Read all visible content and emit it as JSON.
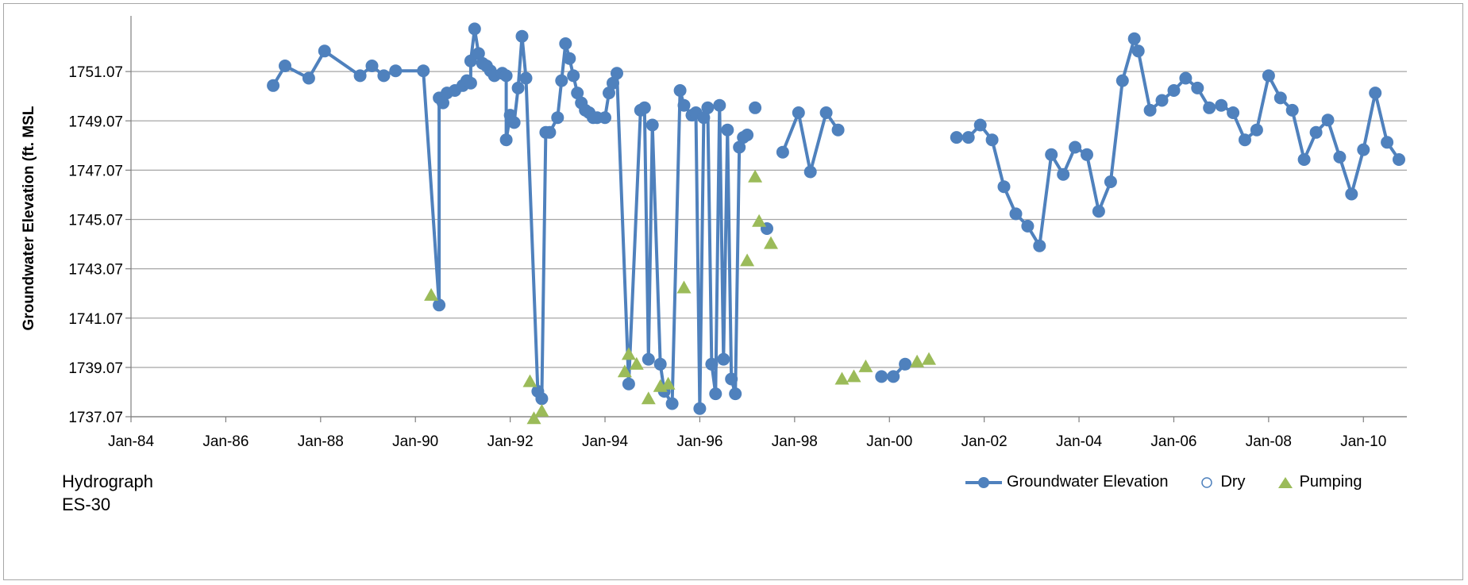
{
  "caption": {
    "line1": "Hydrograph",
    "line2": "ES-30"
  },
  "chart_data": {
    "type": "line",
    "ylabel": "Groundwater Elevation (ft. MSL",
    "xlabel": "",
    "ylim": [
      1737.07,
      1753.07
    ],
    "y_ticks": [
      1737.07,
      1739.07,
      1741.07,
      1743.07,
      1745.07,
      1747.07,
      1749.07,
      1751.07
    ],
    "y_tick_labels": [
      "1737.07",
      "1739.07",
      "1741.07",
      "1743.07",
      "1745.07",
      "1747.07",
      "1749.07",
      "1751.07"
    ],
    "xlim": [
      "1984-01",
      "2010-12"
    ],
    "x_ticks": [
      "1984-01",
      "1986-01",
      "1988-01",
      "1990-01",
      "1992-01",
      "1994-01",
      "1996-01",
      "1998-01",
      "2000-01",
      "2002-01",
      "2004-01",
      "2006-01",
      "2008-01",
      "2010-01"
    ],
    "x_tick_labels": [
      "Jan-84",
      "Jan-86",
      "Jan-88",
      "Jan-90",
      "Jan-92",
      "Jan-94",
      "Jan-96",
      "Jan-98",
      "Jan-00",
      "Jan-02",
      "Jan-04",
      "Jan-06",
      "Jan-08",
      "Jan-10"
    ],
    "grid": "horizontal",
    "legend_position": "bottom-right",
    "colors": {
      "elevation": "#4f81bd",
      "pumping": "#9bbb59",
      "dry": "#4f81bd",
      "axis": "#7f7f7f",
      "grid": "#a6a6a6"
    },
    "legend": [
      {
        "label": "Groundwater Elevation",
        "symbol": "line-circle"
      },
      {
        "label": "Dry",
        "symbol": "open-circle"
      },
      {
        "label": "Pumping",
        "symbol": "triangle"
      }
    ],
    "series": [
      {
        "name": "Groundwater Elevation",
        "segments": [
          [
            [
              "1987-01",
              1750.5
            ],
            [
              "1987-04",
              1751.3
            ],
            [
              "1987-10",
              1750.8
            ],
            [
              "1988-02",
              1751.9
            ],
            [
              "1988-11",
              1750.9
            ],
            [
              "1989-02",
              1751.3
            ],
            [
              "1989-05",
              1750.9
            ],
            [
              "1989-08",
              1751.1
            ],
            [
              "1990-03",
              1751.1
            ],
            [
              "1990-07",
              1741.6
            ],
            [
              "1990-07",
              1750.0
            ],
            [
              "1990-08",
              1749.8
            ],
            [
              "1990-09",
              1750.2
            ],
            [
              "1990-11",
              1750.3
            ],
            [
              "1991-01",
              1750.5
            ],
            [
              "1991-02",
              1750.7
            ],
            [
              "1991-03",
              1750.6
            ],
            [
              "1991-03",
              1751.5
            ],
            [
              "1991-04",
              1752.8
            ],
            [
              "1991-05",
              1751.8
            ],
            [
              "1991-06",
              1751.4
            ],
            [
              "1991-07",
              1751.3
            ],
            [
              "1991-08",
              1751.1
            ],
            [
              "1991-09",
              1750.9
            ],
            [
              "1991-11",
              1751.0
            ],
            [
              "1991-12",
              1750.9
            ],
            [
              "1991-12",
              1748.3
            ],
            [
              "1992-01",
              1749.3
            ],
            [
              "1992-02",
              1749.0
            ],
            [
              "1992-03",
              1750.4
            ],
            [
              "1992-04",
              1752.5
            ],
            [
              "1992-05",
              1750.8
            ],
            [
              "1992-08",
              1738.1
            ],
            [
              "1992-09",
              1737.8
            ],
            [
              "1992-10",
              1748.6
            ],
            [
              "1992-11",
              1748.6
            ],
            [
              "1993-01",
              1749.2
            ],
            [
              "1993-02",
              1750.7
            ],
            [
              "1993-03",
              1752.2
            ],
            [
              "1993-04",
              1751.6
            ],
            [
              "1993-05",
              1750.9
            ],
            [
              "1993-06",
              1750.2
            ],
            [
              "1993-07",
              1749.8
            ],
            [
              "1993-08",
              1749.5
            ],
            [
              "1993-09",
              1749.4
            ],
            [
              "1993-10",
              1749.2
            ],
            [
              "1993-11",
              1749.2
            ],
            [
              "1994-01",
              1749.2
            ],
            [
              "1994-02",
              1750.2
            ],
            [
              "1994-03",
              1750.6
            ],
            [
              "1994-04",
              1751.0
            ],
            [
              "1994-07",
              1738.4
            ],
            [
              "1994-10",
              1749.5
            ],
            [
              "1994-11",
              1749.6
            ],
            [
              "1994-12",
              1739.4
            ],
            [
              "1995-01",
              1748.9
            ],
            [
              "1995-03",
              1739.2
            ],
            [
              "1995-04",
              1738.1
            ],
            [
              "1995-06",
              1737.6
            ],
            [
              "1995-08",
              1750.3
            ],
            [
              "1995-09",
              1749.7
            ],
            [
              "1995-11",
              1749.3
            ],
            [
              "1995-12",
              1749.4
            ],
            [
              "1996-01",
              1737.4
            ],
            [
              "1996-02",
              1749.2
            ],
            [
              "1996-03",
              1749.6
            ],
            [
              "1996-04",
              1739.2
            ],
            [
              "1996-05",
              1738.0
            ],
            [
              "1996-06",
              1749.7
            ],
            [
              "1996-07",
              1739.4
            ],
            [
              "1996-08",
              1748.7
            ],
            [
              "1996-09",
              1738.6
            ],
            [
              "1996-10",
              1738.0
            ],
            [
              "1996-11",
              1748.0
            ],
            [
              "1996-12",
              1748.4
            ],
            [
              "1997-01",
              1748.5
            ]
          ],
          [
            [
              "1997-03",
              1749.6
            ]
          ],
          [
            [
              "1997-06",
              1744.7
            ]
          ],
          [
            [
              "1997-10",
              1747.8
            ],
            [
              "1998-02",
              1749.4
            ],
            [
              "1998-05",
              1747.0
            ],
            [
              "1998-09",
              1749.4
            ],
            [
              "1998-12",
              1748.7
            ]
          ],
          [
            [
              "1999-11",
              1738.7
            ],
            [
              "2000-02",
              1738.7
            ],
            [
              "2000-05",
              1739.2
            ]
          ],
          [
            [
              "2001-06",
              1748.4
            ],
            [
              "2001-09",
              1748.4
            ],
            [
              "2001-12",
              1748.9
            ],
            [
              "2002-03",
              1748.3
            ],
            [
              "2002-06",
              1746.4
            ],
            [
              "2002-09",
              1745.3
            ],
            [
              "2002-12",
              1744.8
            ],
            [
              "2003-03",
              1744.0
            ],
            [
              "2003-06",
              1747.7
            ],
            [
              "2003-09",
              1746.9
            ],
            [
              "2003-12",
              1748.0
            ],
            [
              "2004-03",
              1747.7
            ],
            [
              "2004-06",
              1745.4
            ],
            [
              "2004-09",
              1746.6
            ],
            [
              "2004-12",
              1750.7
            ],
            [
              "2005-03",
              1752.4
            ],
            [
              "2005-04",
              1751.9
            ],
            [
              "2005-07",
              1749.5
            ],
            [
              "2005-10",
              1749.9
            ],
            [
              "2006-01",
              1750.3
            ],
            [
              "2006-04",
              1750.8
            ],
            [
              "2006-07",
              1750.4
            ],
            [
              "2006-10",
              1749.6
            ],
            [
              "2007-01",
              1749.7
            ],
            [
              "2007-04",
              1749.4
            ],
            [
              "2007-07",
              1748.3
            ],
            [
              "2007-10",
              1748.7
            ],
            [
              "2008-01",
              1750.9
            ],
            [
              "2008-04",
              1750.0
            ],
            [
              "2008-07",
              1749.5
            ],
            [
              "2008-10",
              1747.5
            ],
            [
              "2009-01",
              1748.6
            ],
            [
              "2009-04",
              1749.1
            ],
            [
              "2009-07",
              1747.6
            ],
            [
              "2009-10",
              1746.1
            ],
            [
              "2010-01",
              1747.9
            ],
            [
              "2010-04",
              1750.2
            ],
            [
              "2010-07",
              1748.2
            ],
            [
              "2010-10",
              1747.5
            ]
          ]
        ]
      },
      {
        "name": "Dry",
        "points": []
      },
      {
        "name": "Pumping",
        "points": [
          [
            "1990-05",
            1742.0
          ],
          [
            "1992-06",
            1738.5
          ],
          [
            "1992-07",
            1737.0
          ],
          [
            "1992-09",
            1737.3
          ],
          [
            "1994-06",
            1738.9
          ],
          [
            "1994-07",
            1739.6
          ],
          [
            "1994-09",
            1739.2
          ],
          [
            "1994-12",
            1737.8
          ],
          [
            "1995-03",
            1738.3
          ],
          [
            "1995-05",
            1738.4
          ],
          [
            "1995-09",
            1742.3
          ],
          [
            "1997-01",
            1743.4
          ],
          [
            "1997-03",
            1746.8
          ],
          [
            "1997-04",
            1745.0
          ],
          [
            "1997-07",
            1744.1
          ],
          [
            "1999-01",
            1738.6
          ],
          [
            "1999-04",
            1738.7
          ],
          [
            "1999-07",
            1739.1
          ],
          [
            "2000-08",
            1739.3
          ],
          [
            "2000-11",
            1739.4
          ]
        ]
      }
    ]
  }
}
